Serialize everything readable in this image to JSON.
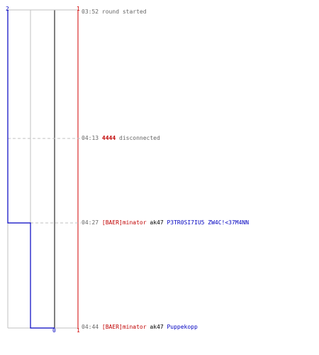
{
  "score_labels": {
    "top_left": "2",
    "top_right": "1",
    "bottom_middle": "0",
    "bottom_right": "1"
  },
  "colors": {
    "team_blue": "#0000c0",
    "team_red": "#c00000",
    "gridline": "#c0c0c0",
    "dashed": "#c0c0c0",
    "middle_line": "#555555",
    "text_gray": "#666666"
  },
  "events": [
    {
      "time": "03:52",
      "message": "round started"
    },
    {
      "time": "04:13",
      "player": "4444",
      "message": "disconnected"
    },
    {
      "time": "04:27",
      "killer": "[BAER]minator",
      "weapon": "ak47",
      "victim": "P3TR0SI7IU5 ZW4C!<37M4NN"
    },
    {
      "time": "04:44",
      "killer": "[BAER]minator",
      "weapon": "ak47",
      "victim": "Puppekopp"
    }
  ]
}
